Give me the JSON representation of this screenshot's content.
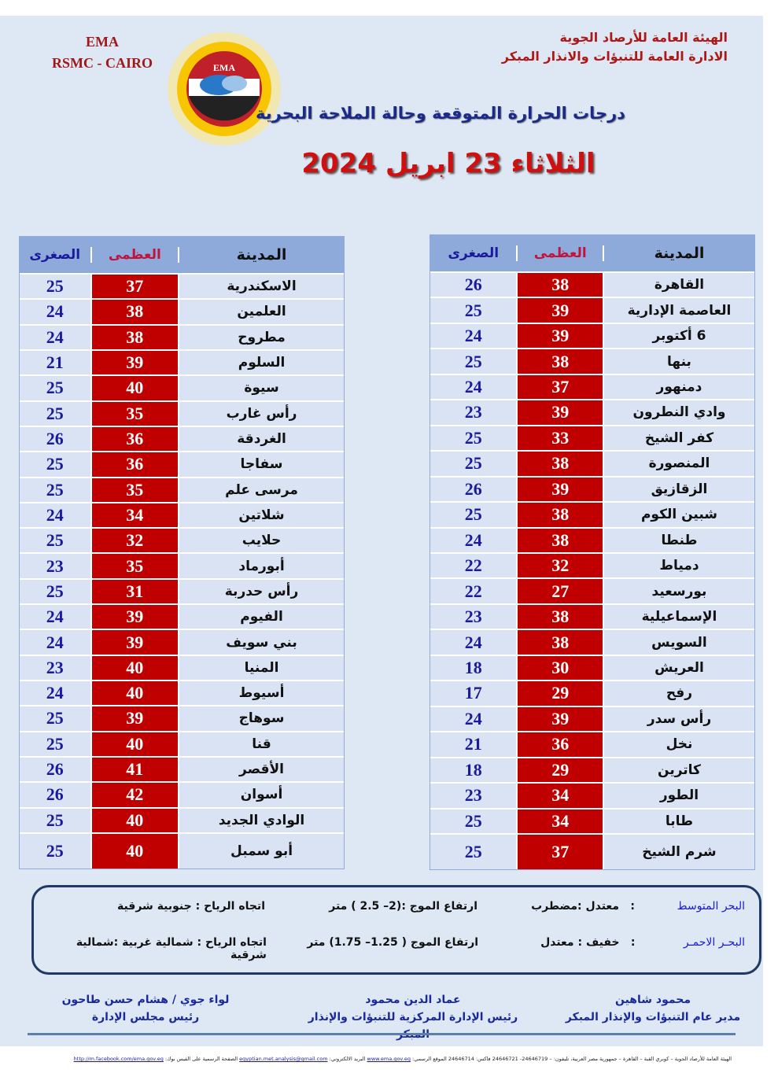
{
  "header": {
    "ema_line1": "EMA",
    "ema_line2": "RSMC - CAIRO",
    "org_line1": "الهيئة العامة للأرصاد الجوية",
    "org_line2": "الادارة العامة للتنبؤات والانذار المبكر",
    "logo_text": "EMA",
    "subtitle": "درجات الحرارة المتوقعة وحالة الملاحة البحرية",
    "date": "الثلاثاء 23 ابريل 2024"
  },
  "columns": {
    "city": "المدينة",
    "max": "العظمى",
    "min": "الصغرى"
  },
  "colors": {
    "max_bg": "#c00000",
    "header_bg": "#8eaadb",
    "row_bg": "#dae3f3",
    "min_text": "#1a1a9a"
  },
  "right_table": [
    {
      "city": "القاهرة",
      "max": "38",
      "min": "26"
    },
    {
      "city": "العاصمة الإدارية",
      "max": "39",
      "min": "25"
    },
    {
      "city": "6 أكتوبر",
      "max": "39",
      "min": "24"
    },
    {
      "city": "بنها",
      "max": "38",
      "min": "25"
    },
    {
      "city": "دمنهور",
      "max": "37",
      "min": "24"
    },
    {
      "city": "وادي النطرون",
      "max": "39",
      "min": "23"
    },
    {
      "city": "كفر الشيخ",
      "max": "33",
      "min": "25"
    },
    {
      "city": "المنصورة",
      "max": "38",
      "min": "25"
    },
    {
      "city": "الزقازيق",
      "max": "39",
      "min": "26"
    },
    {
      "city": "شبين الكوم",
      "max": "38",
      "min": "25"
    },
    {
      "city": "طنطا",
      "max": "38",
      "min": "24"
    },
    {
      "city": "دمياط",
      "max": "32",
      "min": "22"
    },
    {
      "city": "بورسعيد",
      "max": "27",
      "min": "22"
    },
    {
      "city": "الإسماعيلية",
      "max": "38",
      "min": "23"
    },
    {
      "city": "السويس",
      "max": "38",
      "min": "24"
    },
    {
      "city": "العريش",
      "max": "30",
      "min": "18"
    },
    {
      "city": "رفح",
      "max": "29",
      "min": "17"
    },
    {
      "city": "رأس سدر",
      "max": "39",
      "min": "24"
    },
    {
      "city": "نخل",
      "max": "36",
      "min": "21"
    },
    {
      "city": "كاترين",
      "max": "29",
      "min": "18"
    },
    {
      "city": "الطور",
      "max": "34",
      "min": "23"
    },
    {
      "city": "طابا",
      "max": "34",
      "min": "25"
    },
    {
      "city": "شرم الشيخ",
      "max": "37",
      "min": "25"
    }
  ],
  "left_table": [
    {
      "city": "الاسكندرية",
      "max": "37",
      "min": "25"
    },
    {
      "city": "العلمين",
      "max": "38",
      "min": "24"
    },
    {
      "city": "مطروح",
      "max": "38",
      "min": "24"
    },
    {
      "city": "السلوم",
      "max": "39",
      "min": "21"
    },
    {
      "city": "سيوة",
      "max": "40",
      "min": "25"
    },
    {
      "city": "رأس غارب",
      "max": "35",
      "min": "25"
    },
    {
      "city": "الغردقة",
      "max": "36",
      "min": "26"
    },
    {
      "city": "سفاجا",
      "max": "36",
      "min": "25"
    },
    {
      "city": "مرسى علم",
      "max": "35",
      "min": "25"
    },
    {
      "city": "شلاتين",
      "max": "34",
      "min": "24"
    },
    {
      "city": "حلايب",
      "max": "32",
      "min": "25"
    },
    {
      "city": "أبورماد",
      "max": "35",
      "min": "23"
    },
    {
      "city": "رأس حدربة",
      "max": "31",
      "min": "25"
    },
    {
      "city": "الفيوم",
      "max": "39",
      "min": "24"
    },
    {
      "city": "بني سويف",
      "max": "39",
      "min": "24"
    },
    {
      "city": "المنيا",
      "max": "40",
      "min": "23"
    },
    {
      "city": "أسيوط",
      "max": "40",
      "min": "24"
    },
    {
      "city": "سوهاج",
      "max": "39",
      "min": "25"
    },
    {
      "city": "قنا",
      "max": "40",
      "min": "25"
    },
    {
      "city": "الأقصر",
      "max": "41",
      "min": "26"
    },
    {
      "city": "أسوان",
      "max": "42",
      "min": "26"
    },
    {
      "city": "الوادي الجديد",
      "max": "40",
      "min": "25"
    },
    {
      "city": "أبو سمبل",
      "max": "40",
      "min": "25"
    }
  ],
  "sea": [
    {
      "name": "البحر المتوسط",
      "sep": ":",
      "state": "معتدل :مضطرب",
      "waves": "ارتفاع الموج :(2– 2.5 ) متر",
      "wind": "اتجاه الرياح : جنوبية شرقية"
    },
    {
      "name": "البحـر الاحمـر",
      "sep": ":",
      "state": "خفيف : معتدل",
      "waves": "ارتفاع الموج ( 1.25– 1.75) متر",
      "wind": "اتجاه الرياح : شمالية غربية :شمالية شرقية"
    }
  ],
  "signatures": [
    {
      "name": "محمود شاهين",
      "title": "مدير عام التنبؤات والإنذار المبكر"
    },
    {
      "name": "عماد الدين محمود",
      "title": "رئيس الإدارة المركزية للتنبؤات والإنذار المبكر"
    },
    {
      "name": "لواء جوي / هشام حسن طاحون",
      "title": "رئيس مجلس الإدارة"
    }
  ],
  "footer": {
    "address": "الهيئة العامة للأرصاد الجوية – كوبري القبة – القاهرة – جمهورية مصر العربية، تليفون: – 24646719- 24646721 فاكس: 24646714 الموقع الرسمي:",
    "website": "www.ema.gov.eg",
    "email_label": "البريد الالكتروني:",
    "email": "egyptian.met.analysis@gmail.com",
    "facebook_label": "الصفحة الرسمية على الفيس بوك:",
    "facebook": "http://m.facebook.com/ema.gov.eg"
  }
}
